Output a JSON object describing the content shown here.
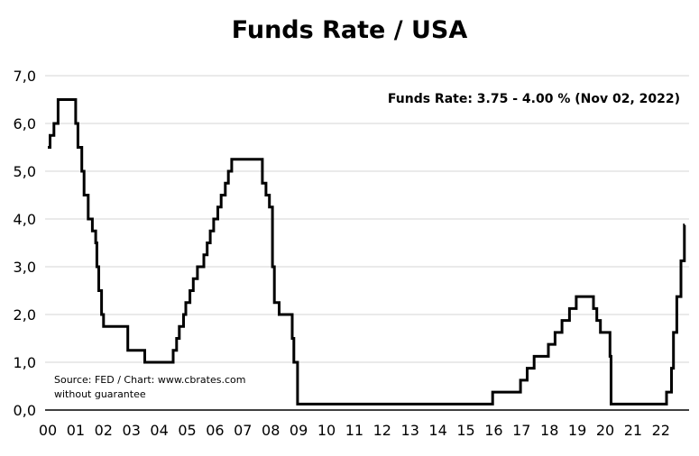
{
  "chart_data": {
    "type": "line",
    "title": "Funds Rate / USA",
    "annotation": "Funds Rate: 3.75 - 4.00 % (Nov 02, 2022)",
    "source_line1": "Source: FED / Chart: www.cbrates.com",
    "source_line2": "without guarantee",
    "xlabel": "",
    "ylabel": "",
    "xlim": [
      2000,
      2022.85
    ],
    "ylim": [
      0,
      7
    ],
    "y_ticks": [
      0,
      1,
      2,
      3,
      4,
      5,
      6,
      7
    ],
    "y_tick_labels": [
      "0,0",
      "1,0",
      "2,0",
      "3,0",
      "4,0",
      "5,0",
      "6,0",
      "7,0"
    ],
    "x_tick_labels": [
      "00",
      "01",
      "02",
      "03",
      "04",
      "05",
      "06",
      "07",
      "08",
      "09",
      "10",
      "11",
      "12",
      "13",
      "14",
      "15",
      "16",
      "17",
      "18",
      "19",
      "20",
      "21",
      "22"
    ],
    "grid": true,
    "line_color": "#000000",
    "step": true,
    "series": [
      {
        "values": [
          [
            2000.0,
            5.5
          ],
          [
            2000.08,
            5.75
          ],
          [
            2000.22,
            6.0
          ],
          [
            2000.37,
            6.5
          ],
          [
            2001.0,
            6.0
          ],
          [
            2001.08,
            5.5
          ],
          [
            2001.22,
            5.0
          ],
          [
            2001.3,
            4.5
          ],
          [
            2001.45,
            4.0
          ],
          [
            2001.6,
            3.75
          ],
          [
            2001.72,
            3.5
          ],
          [
            2001.76,
            3.0
          ],
          [
            2001.83,
            2.5
          ],
          [
            2001.93,
            2.0
          ],
          [
            2002.0,
            1.75
          ],
          [
            2002.87,
            1.25
          ],
          [
            2003.48,
            1.0
          ],
          [
            2004.5,
            1.25
          ],
          [
            2004.62,
            1.5
          ],
          [
            2004.72,
            1.75
          ],
          [
            2004.87,
            2.0
          ],
          [
            2004.95,
            2.25
          ],
          [
            2005.1,
            2.5
          ],
          [
            2005.22,
            2.75
          ],
          [
            2005.37,
            3.0
          ],
          [
            2005.6,
            3.25
          ],
          [
            2005.72,
            3.5
          ],
          [
            2005.83,
            3.75
          ],
          [
            2005.95,
            4.0
          ],
          [
            2006.1,
            4.25
          ],
          [
            2006.22,
            4.5
          ],
          [
            2006.37,
            4.75
          ],
          [
            2006.48,
            5.0
          ],
          [
            2006.6,
            5.25
          ],
          [
            2007.7,
            4.75
          ],
          [
            2007.83,
            4.5
          ],
          [
            2007.95,
            4.25
          ],
          [
            2008.06,
            3.0
          ],
          [
            2008.13,
            2.25
          ],
          [
            2008.3,
            2.0
          ],
          [
            2008.77,
            1.5
          ],
          [
            2008.83,
            1.0
          ],
          [
            2008.96,
            0.125
          ],
          [
            2015.96,
            0.375
          ],
          [
            2016.96,
            0.625
          ],
          [
            2017.2,
            0.875
          ],
          [
            2017.45,
            1.125
          ],
          [
            2017.96,
            1.375
          ],
          [
            2018.2,
            1.625
          ],
          [
            2018.45,
            1.875
          ],
          [
            2018.72,
            2.125
          ],
          [
            2018.96,
            2.375
          ],
          [
            2019.58,
            2.125
          ],
          [
            2019.7,
            1.875
          ],
          [
            2019.83,
            1.625
          ],
          [
            2020.17,
            1.125
          ],
          [
            2020.21,
            0.125
          ],
          [
            2022.2,
            0.375
          ],
          [
            2022.38,
            0.875
          ],
          [
            2022.45,
            1.625
          ],
          [
            2022.57,
            2.375
          ],
          [
            2022.72,
            3.125
          ],
          [
            2022.84,
            3.875
          ],
          [
            2022.85,
            3.875
          ]
        ]
      }
    ]
  }
}
